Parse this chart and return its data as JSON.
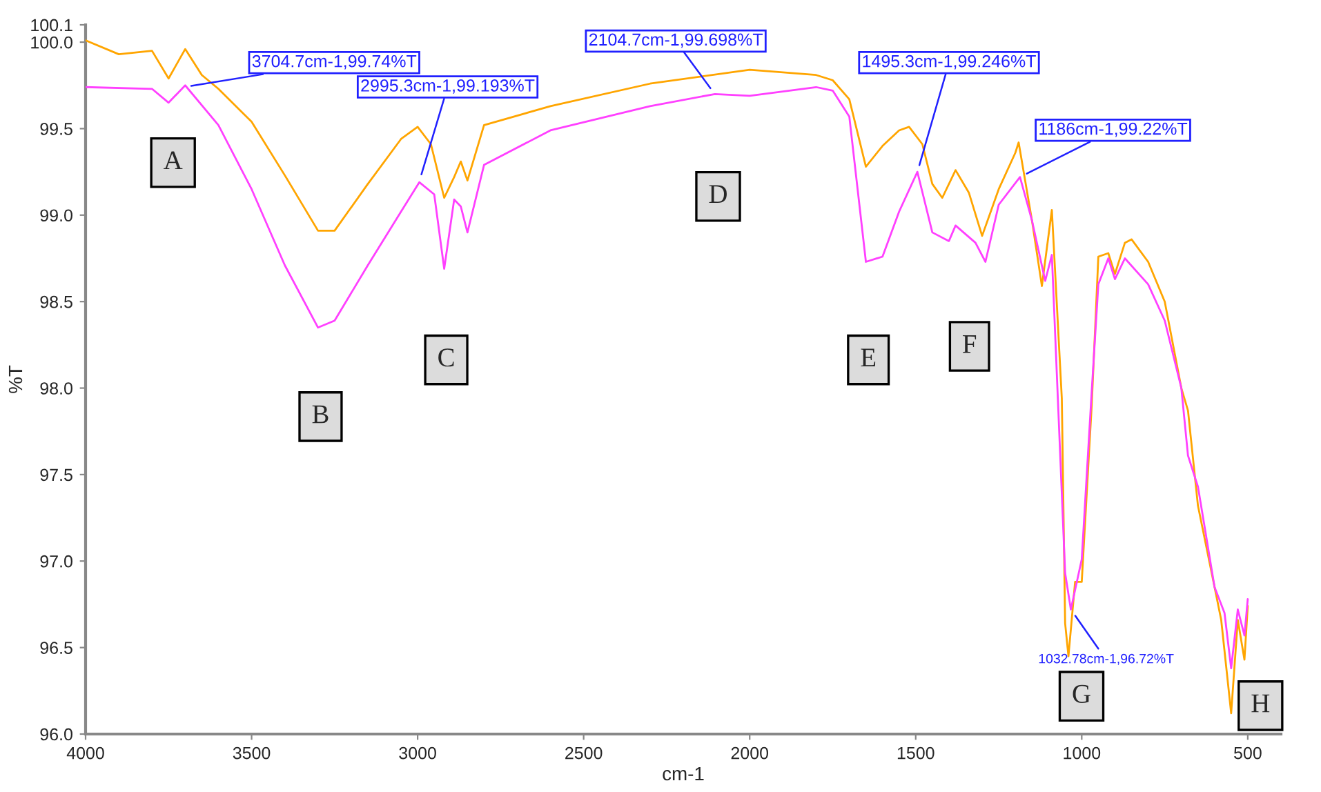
{
  "chart_data": {
    "type": "line",
    "xlabel": "cm-1",
    "ylabel": "%T",
    "xlim": [
      4000,
      400
    ],
    "xticks": [
      4000,
      3500,
      3000,
      2500,
      2000,
      1500,
      1000,
      500
    ],
    "ylim": [
      96.0,
      100.1
    ],
    "yticks": [
      {
        "value": 96.0,
        "label": "96.0"
      },
      {
        "value": 96.5,
        "label": "96.5"
      },
      {
        "value": 97.0,
        "label": "97.0"
      },
      {
        "value": 97.5,
        "label": "97.5"
      },
      {
        "value": 98.0,
        "label": "98.0"
      },
      {
        "value": 98.5,
        "label": "98.5"
      },
      {
        "value": 99.0,
        "label": "99.0"
      },
      {
        "value": 99.5,
        "label": "99.5"
      },
      {
        "value": 100.0,
        "label": "100.0"
      },
      {
        "value": 100.1,
        "label": "100.1"
      }
    ],
    "line_style": "solid",
    "marker": "none",
    "series": [
      {
        "color": "#ffa500",
        "x": [
          4000,
          3900,
          3800,
          3750,
          3700,
          3650,
          3600,
          3500,
          3400,
          3300,
          3250,
          3150,
          3050,
          3000,
          2960,
          2920,
          2890,
          2870,
          2850,
          2800,
          2600,
          2300,
          2000,
          1800,
          1750,
          1700,
          1650,
          1600,
          1550,
          1520,
          1480,
          1450,
          1420,
          1380,
          1340,
          1300,
          1250,
          1200,
          1190,
          1150,
          1120,
          1090,
          1060,
          1050,
          1040,
          1020,
          1000,
          970,
          950,
          920,
          900,
          870,
          850,
          800,
          750,
          700,
          680,
          650,
          600,
          580,
          550,
          530,
          510,
          500
        ],
        "values": [
          100.01,
          99.93,
          99.95,
          99.79,
          99.96,
          99.81,
          99.73,
          99.54,
          99.23,
          98.91,
          98.91,
          99.18,
          99.44,
          99.51,
          99.41,
          99.1,
          99.22,
          99.31,
          99.2,
          99.52,
          99.63,
          99.76,
          99.84,
          99.81,
          99.78,
          99.67,
          99.28,
          99.4,
          99.49,
          99.51,
          99.41,
          99.18,
          99.1,
          99.26,
          99.13,
          98.88,
          99.15,
          99.36,
          99.42,
          98.97,
          98.59,
          99.03,
          97.94,
          96.64,
          96.45,
          96.88,
          96.88,
          97.9,
          98.76,
          98.78,
          98.66,
          98.84,
          98.86,
          98.73,
          98.5,
          98.0,
          97.87,
          97.32,
          96.85,
          96.66,
          96.12,
          96.66,
          96.43,
          96.74
        ]
      },
      {
        "color": "#ff40ff",
        "x": [
          4000,
          3800,
          3750,
          3700,
          3600,
          3500,
          3400,
          3300,
          3250,
          3150,
          3050,
          2995,
          2950,
          2920,
          2890,
          2870,
          2850,
          2800,
          2600,
          2300,
          2104.7,
          2000,
          1800,
          1750,
          1700,
          1650,
          1600,
          1550,
          1495,
          1450,
          1400,
          1380,
          1320,
          1290,
          1250,
          1186,
          1150,
          1110,
          1090,
          1050,
          1032.78,
          1000,
          970,
          950,
          920,
          900,
          870,
          800,
          750,
          700,
          680,
          650,
          600,
          570,
          550,
          530,
          510,
          500
        ],
        "values": [
          99.74,
          99.73,
          99.65,
          99.75,
          99.52,
          99.15,
          98.71,
          98.35,
          98.39,
          98.71,
          99.02,
          99.19,
          99.12,
          98.69,
          99.09,
          99.05,
          98.9,
          99.29,
          99.49,
          99.63,
          99.7,
          99.69,
          99.74,
          99.72,
          99.57,
          98.73,
          98.76,
          99.02,
          99.25,
          98.9,
          98.85,
          98.94,
          98.84,
          98.73,
          99.06,
          99.22,
          98.97,
          98.62,
          98.77,
          96.93,
          96.72,
          97.01,
          97.98,
          98.6,
          98.75,
          98.63,
          98.75,
          98.6,
          98.39,
          98.0,
          97.61,
          97.43,
          96.85,
          96.7,
          96.38,
          96.72,
          96.57,
          96.78
        ]
      }
    ],
    "annotations": [
      {
        "text": "3704.7cm-1,99.74%T",
        "x": 3704.7,
        "y": 99.74
      },
      {
        "text": "2995.3cm-1,99.193%T",
        "x": 2995.3,
        "y": 99.193
      },
      {
        "text": "2104.7cm-1,99.698%T",
        "x": 2104.7,
        "y": 99.698
      },
      {
        "text": "1495.3cm-1,99.246%T",
        "x": 1495.3,
        "y": 99.246
      },
      {
        "text": "1186cm-1,99.22%T",
        "x": 1186,
        "y": 99.22
      },
      {
        "text": "1032.78cm-1,96.72%T",
        "x": 1032.78,
        "y": 96.72
      },
      "A",
      "B",
      "C",
      "D",
      "E",
      "F",
      "G",
      "H"
    ]
  }
}
